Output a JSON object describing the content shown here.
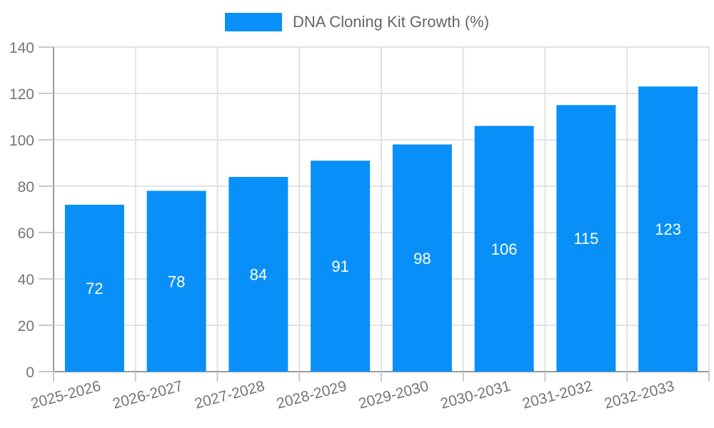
{
  "chart_data": {
    "type": "bar",
    "title": "DNA Cloning Kit Growth (%)",
    "categories": [
      "2025-2026",
      "2026-2027",
      "2027-2028",
      "2028-2029",
      "2029-2030",
      "2030-2031",
      "2031-2032",
      "2032-2033"
    ],
    "values": [
      72,
      78,
      84,
      91,
      98,
      106,
      115,
      123
    ],
    "value_labels": [
      "72",
      "78",
      "84",
      "91",
      "98",
      "106",
      "115",
      "123"
    ],
    "xlabel": "",
    "ylabel": "",
    "ylim": [
      0,
      140
    ],
    "ytick_step": 20,
    "ytick_labels": [
      "0",
      "20",
      "40",
      "60",
      "80",
      "100",
      "120",
      "140"
    ],
    "grid": true,
    "legend_position": "top-center",
    "colors": {
      "bar": "#0990f8",
      "value_label": "#ffffff",
      "axis_text": "#757575",
      "legend_text": "#666666",
      "grid_line": "#e3e3e3",
      "axis_line": "#9a9a9a",
      "tick_mark": "#c9c9c9",
      "background": "#ffffff"
    }
  }
}
